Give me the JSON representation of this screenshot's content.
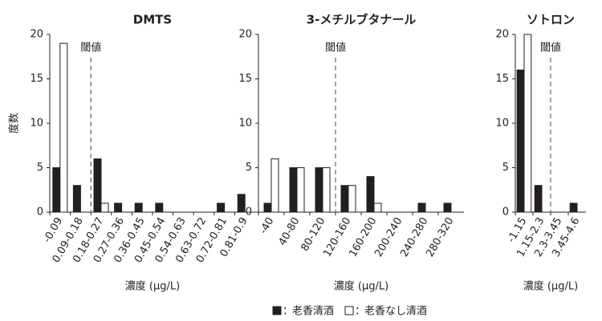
{
  "chart_data": [
    {
      "type": "bar",
      "title": "DMTS",
      "ylabel": "度数",
      "xlabel": "濃度 (μg/L)",
      "categories": [
        "-0.09",
        "0.09-0.18",
        "0.18-0.27",
        "0.27-0.36",
        "0.36-0.45",
        "0.45-0.54",
        "0.54-0.63",
        "0.63-0.72",
        "0.72-0.81",
        "0.81-0.9"
      ],
      "series": [
        {
          "name": "老香清酒",
          "color": "#231f20",
          "values": [
            5,
            3,
            6,
            1,
            1,
            1,
            0,
            0,
            1,
            2
          ]
        },
        {
          "name": "老香なし清酒",
          "color": "#ffffff",
          "values": [
            19,
            0,
            1,
            0,
            0,
            0,
            0,
            0,
            0,
            0
          ]
        }
      ],
      "ylim": [
        0,
        20
      ],
      "yticks": [
        0,
        5,
        10,
        15,
        20
      ],
      "threshold": {
        "label": "閾値",
        "value": 0.18
      }
    },
    {
      "type": "bar",
      "title": "3-メチルブタナール",
      "xlabel": "濃度 (μg/L)",
      "categories": [
        "-40",
        "40-80",
        "80-120",
        "120-160",
        "160-200",
        "200-240",
        "240-280",
        "280-320"
      ],
      "series": [
        {
          "name": "老香清酒",
          "color": "#231f20",
          "values": [
            1,
            5,
            5,
            3,
            4,
            0,
            1,
            1
          ]
        },
        {
          "name": "老香なし清酒",
          "color": "#ffffff",
          "values": [
            6,
            5,
            5,
            3,
            1,
            0,
            0,
            0
          ]
        }
      ],
      "ylim": [
        0,
        20
      ],
      "yticks": [
        0,
        5,
        10,
        15,
        20
      ],
      "threshold": {
        "label": "閾値",
        "value": 120
      }
    },
    {
      "type": "bar",
      "title": "ソトロン",
      "xlabel": "濃度 (μg/L)",
      "categories": [
        "-1.15",
        "1.15-2.3",
        "2.3-3.45",
        "3.45-4.6"
      ],
      "series": [
        {
          "name": "老香清酒",
          "color": "#231f20",
          "values": [
            16,
            3,
            0,
            1
          ]
        },
        {
          "name": "老香なし清酒",
          "color": "#ffffff",
          "values": [
            20,
            0,
            0,
            0
          ]
        }
      ],
      "ylim": [
        0,
        20
      ],
      "yticks": [
        0,
        5,
        10,
        15,
        20
      ],
      "threshold": {
        "label": "閾値",
        "value": 2.3
      }
    }
  ],
  "legend_separator": "："
}
